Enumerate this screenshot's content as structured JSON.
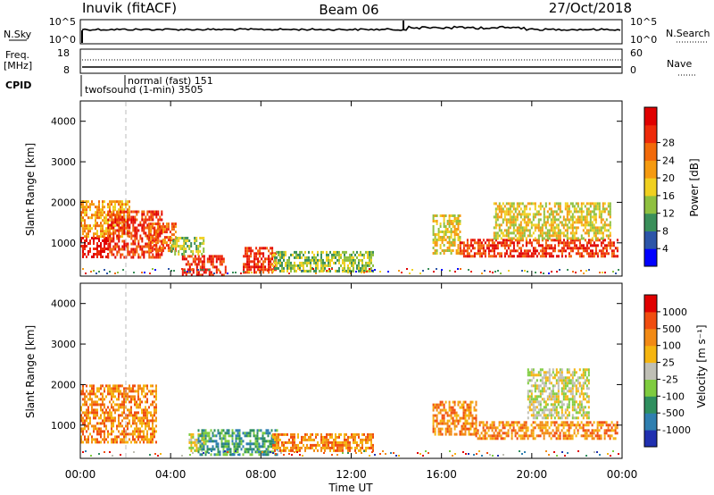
{
  "header": {
    "station": "Inuvik (fitACF)",
    "beam": "Beam 06",
    "date": "27/Oct/2018"
  },
  "nsky_panel": {
    "left_label": "N.Sky",
    "right_label": "N.Search",
    "left_ticks": [
      "10^5",
      "10^0"
    ],
    "right_ticks": [
      "10^5",
      "10^0"
    ]
  },
  "freq_panel": {
    "left_label_1": "Freq.",
    "left_label_2": "[MHz]",
    "right_label": "Nave",
    "left_ticks": [
      "18",
      "8"
    ],
    "right_ticks": [
      "60",
      "0"
    ]
  },
  "cpid_panel": {
    "label": "CPID",
    "modes": [
      "normal (fast) 151",
      "twofsound (1-min) 3505"
    ]
  },
  "power_panel": {
    "ylabel": "Slant Range [km]",
    "yticks": [
      "1000",
      "2000",
      "3000",
      "4000"
    ],
    "colorbar_label": "Power [dB]",
    "colorbar_ticks": [
      "4",
      "8",
      "12",
      "16",
      "20",
      "24",
      "28"
    ],
    "colors": [
      "#0000ff",
      "#2c55a8",
      "#3a8f5a",
      "#8fc040",
      "#f0d020",
      "#f59a10",
      "#f26a0a",
      "#ee2a0a",
      "#e00000"
    ]
  },
  "velocity_panel": {
    "ylabel": "Slant Range [km]",
    "yticks": [
      "1000",
      "2000",
      "3000",
      "4000"
    ],
    "colorbar_label": "Velocity [m s⁻¹]",
    "colorbar_ticks": [
      "1000",
      "500",
      "100",
      "25",
      "-25",
      "-100",
      "-500",
      "-1000"
    ],
    "colors": [
      "#2030b0",
      "#2f7fb0",
      "#2f8f5f",
      "#7fcc40",
      "#bfbfb5",
      "#f5b510",
      "#f28a15",
      "#f04d10",
      "#e00000"
    ]
  },
  "time_axis": {
    "xlabel": "Time UT",
    "ticks": [
      "00:00",
      "04:00",
      "08:00",
      "12:00",
      "16:00",
      "20:00",
      "00:00"
    ]
  },
  "chart_data": {
    "type": "heatmap",
    "x_range_hours": [
      0,
      24
    ],
    "y_range_km": [
      180,
      4500
    ],
    "power_regions": [
      {
        "t": [
          0.0,
          1.2
        ],
        "r": [
          650,
          1150
        ],
        "level": 8
      },
      {
        "t": [
          0.0,
          2.2
        ],
        "r": [
          1150,
          2050
        ],
        "level": 5
      },
      {
        "t": [
          1.2,
          3.6
        ],
        "r": [
          650,
          1800
        ],
        "level": 7
      },
      {
        "t": [
          3.0,
          4.2
        ],
        "r": [
          800,
          1500
        ],
        "level": 6
      },
      {
        "t": [
          4.5,
          6.4
        ],
        "r": [
          230,
          700
        ],
        "level": 7
      },
      {
        "t": [
          4.0,
          5.5
        ],
        "r": [
          700,
          1150
        ],
        "level": 3
      },
      {
        "t": [
          7.2,
          8.7
        ],
        "r": [
          250,
          900
        ],
        "level": 7
      },
      {
        "t": [
          8.5,
          13.0
        ],
        "r": [
          300,
          800
        ],
        "level": 3
      },
      {
        "t": [
          15.6,
          16.8
        ],
        "r": [
          750,
          1700
        ],
        "level": 4
      },
      {
        "t": [
          16.8,
          23.8
        ],
        "r": [
          650,
          1100
        ],
        "level": 7
      },
      {
        "t": [
          18.3,
          23.5
        ],
        "r": [
          1100,
          2000
        ],
        "level": 4
      }
    ],
    "velocity_regions": [
      {
        "t": [
          0.0,
          3.4
        ],
        "r": [
          600,
          2000
        ],
        "level": 6
      },
      {
        "t": [
          4.8,
          5.5
        ],
        "r": [
          400,
          800
        ],
        "level": 4
      },
      {
        "t": [
          5.2,
          8.7
        ],
        "r": [
          300,
          900
        ],
        "level": 2
      },
      {
        "t": [
          8.5,
          13.0
        ],
        "r": [
          400,
          800
        ],
        "level": 6
      },
      {
        "t": [
          15.6,
          17.5
        ],
        "r": [
          800,
          1600
        ],
        "level": 6
      },
      {
        "t": [
          17.5,
          23.8
        ],
        "r": [
          650,
          1100
        ],
        "level": 6
      },
      {
        "t": [
          19.8,
          22.5
        ],
        "r": [
          1200,
          2400
        ],
        "level": 4
      }
    ]
  }
}
